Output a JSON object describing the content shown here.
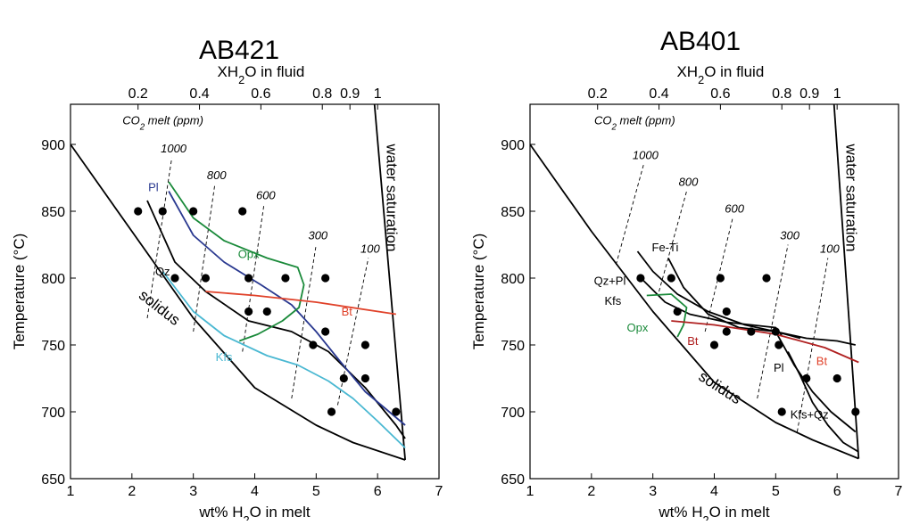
{
  "chart_data": [
    {
      "type": "line",
      "title": "AB421",
      "xlabel_top": "XH2O in fluid",
      "xlabel": "wt% H2O in melt",
      "ylabel": "Temperature (°C)",
      "xlim": [
        1,
        7
      ],
      "ylim": [
        650,
        930
      ],
      "x_ticks": [
        "1",
        "2",
        "3",
        "4",
        "5",
        "6",
        "7"
      ],
      "y_ticks": [
        "650",
        "700",
        "750",
        "800",
        "850",
        "900"
      ],
      "top_ticks": [
        {
          "label": "0.2",
          "at_wt": 2.1
        },
        {
          "label": "0.4",
          "at_wt": 3.1
        },
        {
          "label": "0.6",
          "at_wt": 4.1
        },
        {
          "label": "0.8",
          "at_wt": 5.1
        },
        {
          "label": "0.9",
          "at_wt": 5.55
        },
        {
          "label": "1",
          "at_wt": 6.0
        }
      ],
      "co2_title": "CO2 melt (ppm)",
      "co2_isopleths": [
        {
          "label": "1000",
          "points": [
            [
              2.25,
              770
            ],
            [
              2.65,
              890
            ]
          ]
        },
        {
          "label": "800",
          "points": [
            [
              3.0,
              760
            ],
            [
              3.35,
              870
            ]
          ]
        },
        {
          "label": "600",
          "points": [
            [
              3.8,
              745
            ],
            [
              4.15,
              855
            ]
          ]
        },
        {
          "label": "300",
          "points": [
            [
              4.6,
              710
            ],
            [
              5.0,
              825
            ]
          ]
        },
        {
          "label": "100",
          "points": [
            [
              5.35,
              705
            ],
            [
              5.85,
              815
            ]
          ]
        }
      ],
      "series": [
        {
          "name": "solidus",
          "color": "#000000",
          "points": [
            [
              1.0,
              900
            ],
            [
              2.0,
              835
            ],
            [
              3.0,
              770
            ],
            [
              4.0,
              718
            ],
            [
              5.0,
              690
            ],
            [
              5.6,
              677
            ],
            [
              6.45,
              664
            ]
          ]
        },
        {
          "name": "water saturation",
          "color": "#000000",
          "points": [
            [
              5.95,
              930
            ],
            [
              6.45,
              664
            ]
          ]
        },
        {
          "name": "Qz",
          "color": "#000000",
          "points": [
            [
              2.25,
              858
            ],
            [
              2.7,
              812
            ],
            [
              3.2,
              790
            ],
            [
              3.9,
              768
            ],
            [
              4.6,
              760
            ],
            [
              5.2,
              745
            ],
            [
              5.8,
              718
            ],
            [
              6.3,
              690
            ],
            [
              6.45,
              680
            ]
          ]
        },
        {
          "name": "Pl",
          "color": "#2a3990",
          "points": [
            [
              2.6,
              865
            ],
            [
              3.0,
              832
            ],
            [
              3.5,
              812
            ],
            [
              4.1,
              795
            ],
            [
              4.6,
              780
            ],
            [
              5.0,
              760
            ],
            [
              5.35,
              740
            ],
            [
              5.8,
              715
            ],
            [
              6.45,
              690
            ]
          ]
        },
        {
          "name": "Opx",
          "color": "#1a8a3a",
          "points": [
            [
              2.6,
              872
            ],
            [
              3.0,
              845
            ],
            [
              3.5,
              828
            ],
            [
              4.2,
              815
            ],
            [
              4.7,
              808
            ],
            [
              4.8,
              795
            ],
            [
              4.72,
              778
            ],
            [
              4.45,
              768
            ],
            [
              4.05,
              758
            ],
            [
              3.75,
              753
            ]
          ]
        },
        {
          "name": "Kfs",
          "color": "#4ab8d2",
          "points": [
            [
              2.5,
              805
            ],
            [
              3.0,
              775
            ],
            [
              3.5,
              757
            ],
            [
              4.2,
              742
            ],
            [
              4.7,
              735
            ],
            [
              5.2,
              723
            ],
            [
              5.6,
              710
            ],
            [
              6.0,
              693
            ],
            [
              6.45,
              673
            ]
          ]
        },
        {
          "name": "Bt",
          "color": "#e0422a",
          "points": [
            [
              3.2,
              790
            ],
            [
              4.0,
              787
            ],
            [
              5.0,
              782
            ],
            [
              6.3,
              773
            ]
          ]
        }
      ],
      "points": [
        [
          2.1,
          850
        ],
        [
          2.5,
          850
        ],
        [
          3.0,
          850
        ],
        [
          3.8,
          850
        ],
        [
          2.7,
          800
        ],
        [
          3.2,
          800
        ],
        [
          3.9,
          800
        ],
        [
          4.5,
          800
        ],
        [
          5.15,
          800
        ],
        [
          3.9,
          775
        ],
        [
          4.2,
          775
        ],
        [
          5.15,
          760
        ],
        [
          4.95,
          750
        ],
        [
          5.8,
          750
        ],
        [
          5.45,
          725
        ],
        [
          5.8,
          725
        ],
        [
          5.25,
          700
        ],
        [
          6.3,
          700
        ]
      ],
      "annotations": [
        {
          "text": "Pl",
          "color": "#2a3990",
          "at": [
            2.35,
            865
          ]
        },
        {
          "text": "Qz",
          "color": "#000000",
          "at": [
            2.5,
            802
          ]
        },
        {
          "text": "Opx",
          "color": "#1a8a3a",
          "at": [
            3.9,
            815
          ]
        },
        {
          "text": "Kfs",
          "color": "#4ab8d2",
          "at": [
            3.5,
            738
          ]
        },
        {
          "text": "Bt",
          "color": "#e0422a",
          "at": [
            5.5,
            772
          ]
        },
        {
          "text": "solidus",
          "color": "#000000",
          "at": [
            2.4,
            775
          ],
          "rotate": 38
        },
        {
          "text": "water saturation",
          "color": "#000000",
          "at": [
            6.15,
            860
          ],
          "rotate": 90
        }
      ]
    },
    {
      "type": "line",
      "title": "AB401",
      "xlabel_top": "XH2O in fluid",
      "xlabel": "wt% H2O in melt",
      "ylabel": "Temperature (°C)",
      "xlim": [
        1,
        7
      ],
      "ylim": [
        650,
        930
      ],
      "x_ticks": [
        "1",
        "2",
        "3",
        "4",
        "5",
        "6",
        "7"
      ],
      "y_ticks": [
        "650",
        "700",
        "750",
        "800",
        "850",
        "900"
      ],
      "top_ticks": [
        {
          "label": "0.2",
          "at_wt": 2.1
        },
        {
          "label": "0.4",
          "at_wt": 3.1
        },
        {
          "label": "0.6",
          "at_wt": 4.1
        },
        {
          "label": "0.8",
          "at_wt": 5.1
        },
        {
          "label": "0.9",
          "at_wt": 5.55
        },
        {
          "label": "1",
          "at_wt": 6.0
        }
      ],
      "co2_title": "CO2 melt (ppm)",
      "co2_isopleths": [
        {
          "label": "1000",
          "points": [
            [
              2.4,
              810
            ],
            [
              2.85,
              885
            ]
          ]
        },
        {
          "label": "800",
          "points": [
            [
              3.1,
              790
            ],
            [
              3.55,
              865
            ]
          ]
        },
        {
          "label": "600",
          "points": [
            [
              3.85,
              760
            ],
            [
              4.3,
              845
            ]
          ]
        },
        {
          "label": "300",
          "points": [
            [
              4.7,
              710
            ],
            [
              5.2,
              825
            ]
          ]
        },
        {
          "label": "100",
          "points": [
            [
              5.35,
              685
            ],
            [
              5.85,
              815
            ]
          ]
        }
      ],
      "series": [
        {
          "name": "solidus",
          "color": "#000000",
          "points": [
            [
              1.0,
              900
            ],
            [
              2.0,
              835
            ],
            [
              3.0,
              775
            ],
            [
              4.0,
              722
            ],
            [
              5.0,
              692
            ],
            [
              5.6,
              679
            ],
            [
              6.35,
              665
            ]
          ]
        },
        {
          "name": "water saturation",
          "color": "#000000",
          "points": [
            [
              5.95,
              930
            ],
            [
              6.35,
              665
            ]
          ]
        },
        {
          "name": "Qz+Pl",
          "color": "#000000",
          "points": [
            [
              2.75,
              820
            ],
            [
              3.0,
              805
            ],
            [
              3.4,
              788
            ],
            [
              3.9,
              775
            ],
            [
              4.5,
              765
            ],
            [
              5.0,
              760
            ],
            [
              5.5,
              755
            ],
            [
              6.0,
              753
            ],
            [
              6.3,
              750
            ]
          ]
        },
        {
          "name": "Fe-Ti",
          "color": "#000000",
          "points": [
            [
              3.25,
              815
            ],
            [
              3.5,
              793
            ],
            [
              3.9,
              773
            ],
            [
              4.4,
              763
            ],
            [
              5.0,
              760
            ],
            [
              5.4,
              755
            ]
          ]
        },
        {
          "name": "Kfs",
          "color": "#000000",
          "points": [
            [
              2.85,
              798
            ],
            [
              3.2,
              782
            ],
            [
              3.6,
              773
            ],
            [
              4.2,
              767
            ],
            [
              5.0,
              763
            ],
            [
              5.1,
              757
            ]
          ]
        },
        {
          "name": "Pl",
          "color": "#000000",
          "points": [
            [
              5.0,
              760
            ],
            [
              5.3,
              735
            ],
            [
              5.6,
              715
            ],
            [
              5.9,
              700
            ],
            [
              6.3,
              685
            ]
          ]
        },
        {
          "name": "Kfs+Qz",
          "color": "#000000",
          "points": [
            [
              5.2,
              745
            ],
            [
              5.4,
              727
            ],
            [
              5.6,
              707
            ],
            [
              5.85,
              690
            ],
            [
              6.1,
              677
            ],
            [
              6.35,
              670
            ]
          ]
        },
        {
          "name": "Opx",
          "color": "#1a8a3a",
          "points": [
            [
              2.9,
              787
            ],
            [
              3.3,
              788
            ],
            [
              3.55,
              778
            ],
            [
              3.5,
              765
            ],
            [
              3.4,
              756
            ]
          ]
        },
        {
          "name": "Bt",
          "color": "#b02020",
          "points": [
            [
              3.3,
              768
            ],
            [
              4.0,
              765
            ],
            [
              5.0,
              758
            ],
            [
              5.8,
              748
            ],
            [
              6.35,
              737
            ]
          ]
        }
      ],
      "points": [
        [
          2.8,
          800
        ],
        [
          3.3,
          800
        ],
        [
          4.1,
          800
        ],
        [
          4.85,
          800
        ],
        [
          3.4,
          775
        ],
        [
          4.2,
          775
        ],
        [
          4.0,
          750
        ],
        [
          4.2,
          760
        ],
        [
          4.6,
          760
        ],
        [
          5.0,
          760
        ],
        [
          5.05,
          750
        ],
        [
          5.5,
          725
        ],
        [
          6.0,
          725
        ],
        [
          5.1,
          700
        ],
        [
          6.3,
          700
        ]
      ],
      "annotations": [
        {
          "text": "Fe-Ti",
          "color": "#000000",
          "at": [
            3.2,
            820
          ]
        },
        {
          "text": "Qz+Pl",
          "color": "#000000",
          "at": [
            2.3,
            795
          ]
        },
        {
          "text": "Kfs",
          "color": "#000000",
          "at": [
            2.35,
            780
          ]
        },
        {
          "text": "Opx",
          "color": "#1a8a3a",
          "at": [
            2.75,
            760
          ]
        },
        {
          "text": "Bt",
          "color": "#b02020",
          "at": [
            3.65,
            750
          ]
        },
        {
          "text": "Bt",
          "color": "#e0422a",
          "at": [
            5.75,
            735
          ]
        },
        {
          "text": "Pl",
          "color": "#000000",
          "at": [
            5.05,
            730
          ]
        },
        {
          "text": "Kfs+Qz",
          "color": "#000000",
          "at": [
            5.55,
            695
          ]
        },
        {
          "text": "solidus",
          "color": "#000000",
          "at": [
            4.05,
            715
          ],
          "rotate": 33
        },
        {
          "text": "water saturation",
          "color": "#000000",
          "at": [
            6.15,
            860
          ],
          "rotate": 90
        }
      ]
    }
  ]
}
